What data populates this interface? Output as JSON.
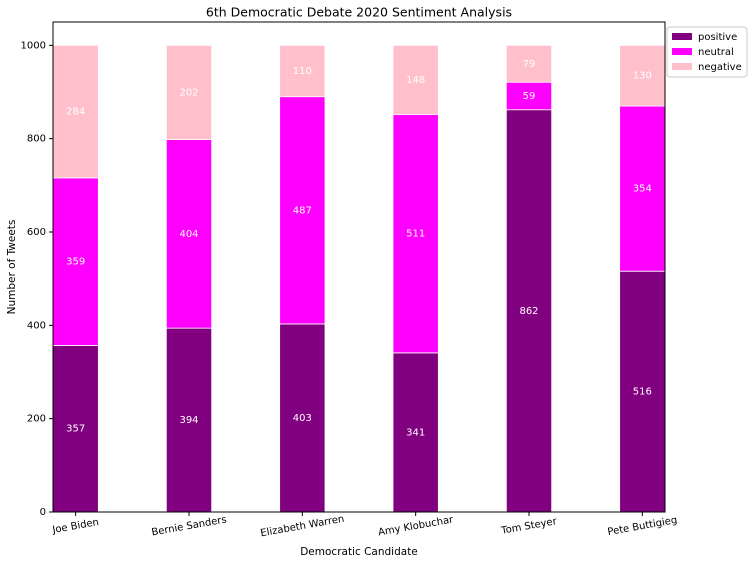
{
  "chart_data": {
    "type": "stacked_bar",
    "title": "6th Democratic Debate 2020 Sentiment Analysis",
    "x_label": "Democratic Candidate",
    "y_label": "Number of Tweets",
    "categories": [
      "Joe Biden",
      "Bernie Sanders",
      "Elizabeth Warren",
      "Amy Klobuchar",
      "Tom Steyer",
      "Pete Buttigieg"
    ],
    "series": [
      {
        "name": "positive",
        "color": "#800080",
        "values": [
          357,
          394,
          403,
          341,
          862,
          516
        ]
      },
      {
        "name": "neutral",
        "color": "#ff00ff",
        "values": [
          359,
          404,
          487,
          511,
          59,
          354
        ]
      },
      {
        "name": "negative",
        "color": "#ffc0cb",
        "values": [
          284,
          202,
          110,
          148,
          79,
          130
        ]
      }
    ],
    "ylim": [
      0,
      1050
    ],
    "yticks": [
      0,
      200,
      400,
      600,
      800,
      1000
    ],
    "grid": false,
    "legend": "outside-upper-right"
  }
}
